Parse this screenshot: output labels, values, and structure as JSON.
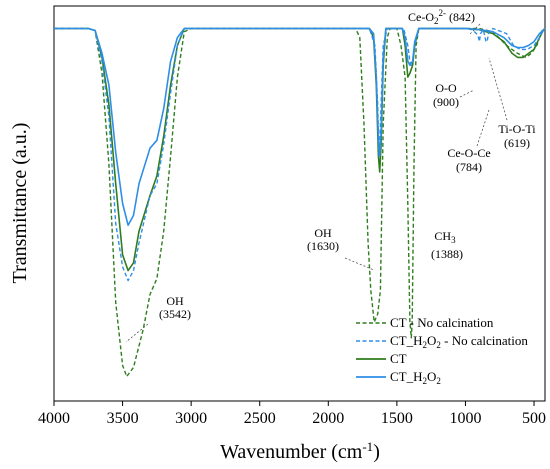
{
  "chart_data": {
    "type": "line",
    "title": "",
    "xlabel": "Wavenumber (cm",
    "xlabel_sup": "-1",
    "xlabel_end": ")",
    "ylabel": "Transmittance (a.u.)",
    "xlim": [
      4000,
      420
    ],
    "ylim": [
      0,
      1
    ],
    "x_ticks": [
      4000,
      3500,
      3000,
      2500,
      2000,
      1500,
      1000,
      500
    ],
    "grid": false,
    "legend_position": "bottom-right",
    "colors": {
      "dark_green": "#2f7d1f",
      "blue": "#2f8ee6"
    },
    "series": [
      {
        "name": "CT - No calcination",
        "color": "#2f7d1f",
        "dashed": true,
        "points": [
          [
            4000,
            0.943
          ],
          [
            3750,
            0.943
          ],
          [
            3700,
            0.938
          ],
          [
            3650,
            0.83
          ],
          [
            3600,
            0.6
          ],
          [
            3550,
            0.25
          ],
          [
            3500,
            0.09
          ],
          [
            3470,
            0.062
          ],
          [
            3420,
            0.085
          ],
          [
            3350,
            0.18
          ],
          [
            3300,
            0.27
          ],
          [
            3250,
            0.31
          ],
          [
            3200,
            0.43
          ],
          [
            3150,
            0.62
          ],
          [
            3100,
            0.82
          ],
          [
            3050,
            0.935
          ],
          [
            3000,
            0.943
          ],
          [
            2500,
            0.943
          ],
          [
            1800,
            0.943
          ],
          [
            1770,
            0.92
          ],
          [
            1740,
            0.7
          ],
          [
            1710,
            0.4
          ],
          [
            1690,
            0.28
          ],
          [
            1665,
            0.2
          ],
          [
            1640,
            0.22
          ],
          [
            1620,
            0.28
          ],
          [
            1600,
            0.7
          ],
          [
            1570,
            0.92
          ],
          [
            1550,
            0.943
          ],
          [
            1500,
            0.943
          ],
          [
            1470,
            0.9
          ],
          [
            1440,
            0.82
          ],
          [
            1420,
            0.5
          ],
          [
            1405,
            0.2
          ],
          [
            1395,
            0.16
          ],
          [
            1388,
            0.2
          ],
          [
            1375,
            0.6
          ],
          [
            1360,
            0.9
          ],
          [
            1340,
            0.943
          ],
          [
            1200,
            0.943
          ],
          [
            1000,
            0.943
          ],
          [
            900,
            0.943
          ],
          [
            800,
            0.935
          ],
          [
            700,
            0.9
          ],
          [
            620,
            0.88
          ],
          [
            560,
            0.87
          ],
          [
            520,
            0.88
          ],
          [
            480,
            0.9
          ],
          [
            440,
            0.94
          ],
          [
            420,
            0.943
          ]
        ]
      },
      {
        "name": "CT_H2O2 - No calcination",
        "color": "#2f8ee6",
        "dashed": true,
        "points": [
          [
            4000,
            0.943
          ],
          [
            3750,
            0.943
          ],
          [
            3700,
            0.938
          ],
          [
            3650,
            0.86
          ],
          [
            3600,
            0.72
          ],
          [
            3550,
            0.45
          ],
          [
            3500,
            0.34
          ],
          [
            3460,
            0.305
          ],
          [
            3420,
            0.33
          ],
          [
            3380,
            0.4
          ],
          [
            3300,
            0.52
          ],
          [
            3250,
            0.55
          ],
          [
            3200,
            0.65
          ],
          [
            3150,
            0.78
          ],
          [
            3100,
            0.9
          ],
          [
            3050,
            0.943
          ],
          [
            2500,
            0.943
          ],
          [
            1800,
            0.943
          ],
          [
            1700,
            0.943
          ],
          [
            1660,
            0.9
          ],
          [
            1640,
            0.75
          ],
          [
            1630,
            0.62
          ],
          [
            1620,
            0.7
          ],
          [
            1600,
            0.9
          ],
          [
            1570,
            0.943
          ],
          [
            1450,
            0.943
          ],
          [
            1420,
            0.9
          ],
          [
            1405,
            0.86
          ],
          [
            1395,
            0.85
          ],
          [
            1385,
            0.86
          ],
          [
            1370,
            0.9
          ],
          [
            1340,
            0.943
          ],
          [
            1000,
            0.943
          ],
          [
            950,
            0.94
          ],
          [
            920,
            0.93
          ],
          [
            905,
            0.92
          ],
          [
            898,
            0.91
          ],
          [
            890,
            0.93
          ],
          [
            870,
            0.94
          ],
          [
            850,
            0.91
          ],
          [
            842,
            0.91
          ],
          [
            830,
            0.935
          ],
          [
            800,
            0.943
          ],
          [
            700,
            0.93
          ],
          [
            650,
            0.9
          ],
          [
            600,
            0.89
          ],
          [
            550,
            0.89
          ],
          [
            500,
            0.9
          ],
          [
            460,
            0.92
          ],
          [
            430,
            0.94
          ],
          [
            420,
            0.943
          ]
        ]
      },
      {
        "name": "CT",
        "color": "#2f7d1f",
        "dashed": false,
        "points": [
          [
            4000,
            0.943
          ],
          [
            3750,
            0.943
          ],
          [
            3700,
            0.938
          ],
          [
            3650,
            0.87
          ],
          [
            3600,
            0.75
          ],
          [
            3550,
            0.55
          ],
          [
            3500,
            0.37
          ],
          [
            3460,
            0.33
          ],
          [
            3420,
            0.35
          ],
          [
            3380,
            0.43
          ],
          [
            3300,
            0.52
          ],
          [
            3250,
            0.57
          ],
          [
            3200,
            0.67
          ],
          [
            3150,
            0.8
          ],
          [
            3100,
            0.9
          ],
          [
            3050,
            0.943
          ],
          [
            2500,
            0.943
          ],
          [
            1800,
            0.943
          ],
          [
            1700,
            0.943
          ],
          [
            1670,
            0.92
          ],
          [
            1650,
            0.8
          ],
          [
            1635,
            0.62
          ],
          [
            1625,
            0.58
          ],
          [
            1615,
            0.65
          ],
          [
            1600,
            0.85
          ],
          [
            1580,
            0.943
          ],
          [
            1460,
            0.943
          ],
          [
            1440,
            0.9
          ],
          [
            1420,
            0.82
          ],
          [
            1405,
            0.83
          ],
          [
            1395,
            0.84
          ],
          [
            1385,
            0.85
          ],
          [
            1370,
            0.9
          ],
          [
            1340,
            0.943
          ],
          [
            1000,
            0.943
          ],
          [
            900,
            0.94
          ],
          [
            800,
            0.93
          ],
          [
            720,
            0.91
          ],
          [
            660,
            0.88
          ],
          [
            620,
            0.87
          ],
          [
            580,
            0.87
          ],
          [
            540,
            0.88
          ],
          [
            500,
            0.89
          ],
          [
            460,
            0.92
          ],
          [
            430,
            0.94
          ],
          [
            420,
            0.943
          ]
        ]
      },
      {
        "name": "CT_H2O2",
        "color": "#2f8ee6",
        "dashed": false,
        "points": [
          [
            4000,
            0.943
          ],
          [
            3750,
            0.943
          ],
          [
            3700,
            0.938
          ],
          [
            3650,
            0.88
          ],
          [
            3600,
            0.8
          ],
          [
            3550,
            0.63
          ],
          [
            3500,
            0.5
          ],
          [
            3460,
            0.445
          ],
          [
            3420,
            0.47
          ],
          [
            3380,
            0.55
          ],
          [
            3300,
            0.64
          ],
          [
            3250,
            0.66
          ],
          [
            3200,
            0.74
          ],
          [
            3150,
            0.86
          ],
          [
            3100,
            0.92
          ],
          [
            3050,
            0.943
          ],
          [
            2500,
            0.943
          ],
          [
            1800,
            0.943
          ],
          [
            1700,
            0.943
          ],
          [
            1670,
            0.93
          ],
          [
            1650,
            0.82
          ],
          [
            1635,
            0.66
          ],
          [
            1625,
            0.62
          ],
          [
            1615,
            0.68
          ],
          [
            1600,
            0.87
          ],
          [
            1580,
            0.943
          ],
          [
            1460,
            0.943
          ],
          [
            1440,
            0.92
          ],
          [
            1420,
            0.86
          ],
          [
            1405,
            0.85
          ],
          [
            1395,
            0.855
          ],
          [
            1385,
            0.86
          ],
          [
            1370,
            0.91
          ],
          [
            1340,
            0.943
          ],
          [
            1000,
            0.943
          ],
          [
            900,
            0.94
          ],
          [
            800,
            0.935
          ],
          [
            720,
            0.92
          ],
          [
            660,
            0.9
          ],
          [
            620,
            0.895
          ],
          [
            580,
            0.895
          ],
          [
            540,
            0.9
          ],
          [
            500,
            0.91
          ],
          [
            460,
            0.93
          ],
          [
            430,
            0.94
          ],
          [
            420,
            0.943
          ]
        ]
      }
    ],
    "annotations": [
      {
        "id": "oh3542",
        "line1": "OH",
        "line2": "(3542)"
      },
      {
        "id": "oh1630",
        "line1": "OH",
        "line2": "(1630)"
      },
      {
        "id": "ch3",
        "line1": "CH",
        "line1_sub": "3",
        "line2": "(1388)"
      },
      {
        "id": "ceo2",
        "line1": "Ce-O",
        "line1_sub": "2",
        "line1_sup": "2-",
        "line1_end": " (842)"
      },
      {
        "id": "oo",
        "line1": "O-O",
        "line2": "(900)"
      },
      {
        "id": "ceoce",
        "line1": "Ce-O-Ce",
        "line2": "(784)"
      },
      {
        "id": "tioti",
        "line1": "Ti-O-Ti",
        "line2": "(619)"
      }
    ],
    "legend": [
      {
        "label": "CT - No calcination"
      },
      {
        "label": "CT_H",
        "sub": "2",
        "mid": "O",
        "sub2": "2",
        "end": " - No calcination"
      },
      {
        "label": "CT"
      },
      {
        "label": "CT_H",
        "sub": "2",
        "mid": "O",
        "sub2": "2",
        "end": ""
      }
    ]
  }
}
